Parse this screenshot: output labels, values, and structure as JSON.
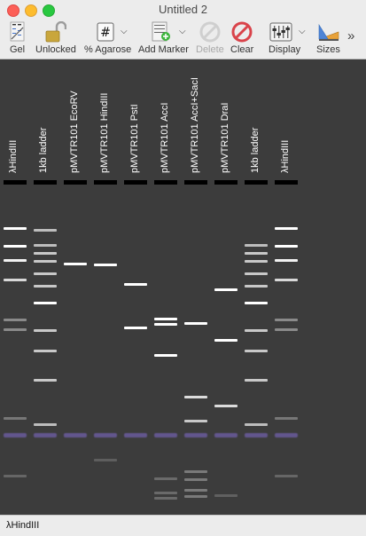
{
  "window": {
    "title": "Untitled 2"
  },
  "toolbar": {
    "items": [
      {
        "label": "Gel",
        "icon": "gel-icon"
      },
      {
        "label": "Unlocked",
        "icon": "unlocked-padlock-icon"
      },
      {
        "label": "% Agarose",
        "icon": "hash-icon"
      },
      {
        "label": "Add Marker",
        "icon": "add-marker-icon"
      },
      {
        "label": "Delete",
        "icon": "delete-icon",
        "enabled": false
      },
      {
        "label": "Clear",
        "icon": "clear-icon"
      },
      {
        "label": "Display",
        "icon": "display-icon"
      },
      {
        "label": "Sizes",
        "icon": "sizes-icon"
      }
    ],
    "overflow": "»"
  },
  "gel": {
    "background_color": "#3c3c3c",
    "lanes": [
      {
        "label": "λHindIII"
      },
      {
        "label": "1kb ladder"
      },
      {
        "label": "pMVTR101 EcoRV"
      },
      {
        "label": "pMVTR101 HindIII"
      },
      {
        "label": "pMVTR101 PstI"
      },
      {
        "label": "pMVTR101 AccI"
      },
      {
        "label": "pMVTR101 AccI+SacI"
      },
      {
        "label": "pMVTR101 DraI"
      },
      {
        "label": "1kb ladder"
      },
      {
        "label": "λHindIII"
      }
    ]
  },
  "status": {
    "text": "λHindIII"
  }
}
